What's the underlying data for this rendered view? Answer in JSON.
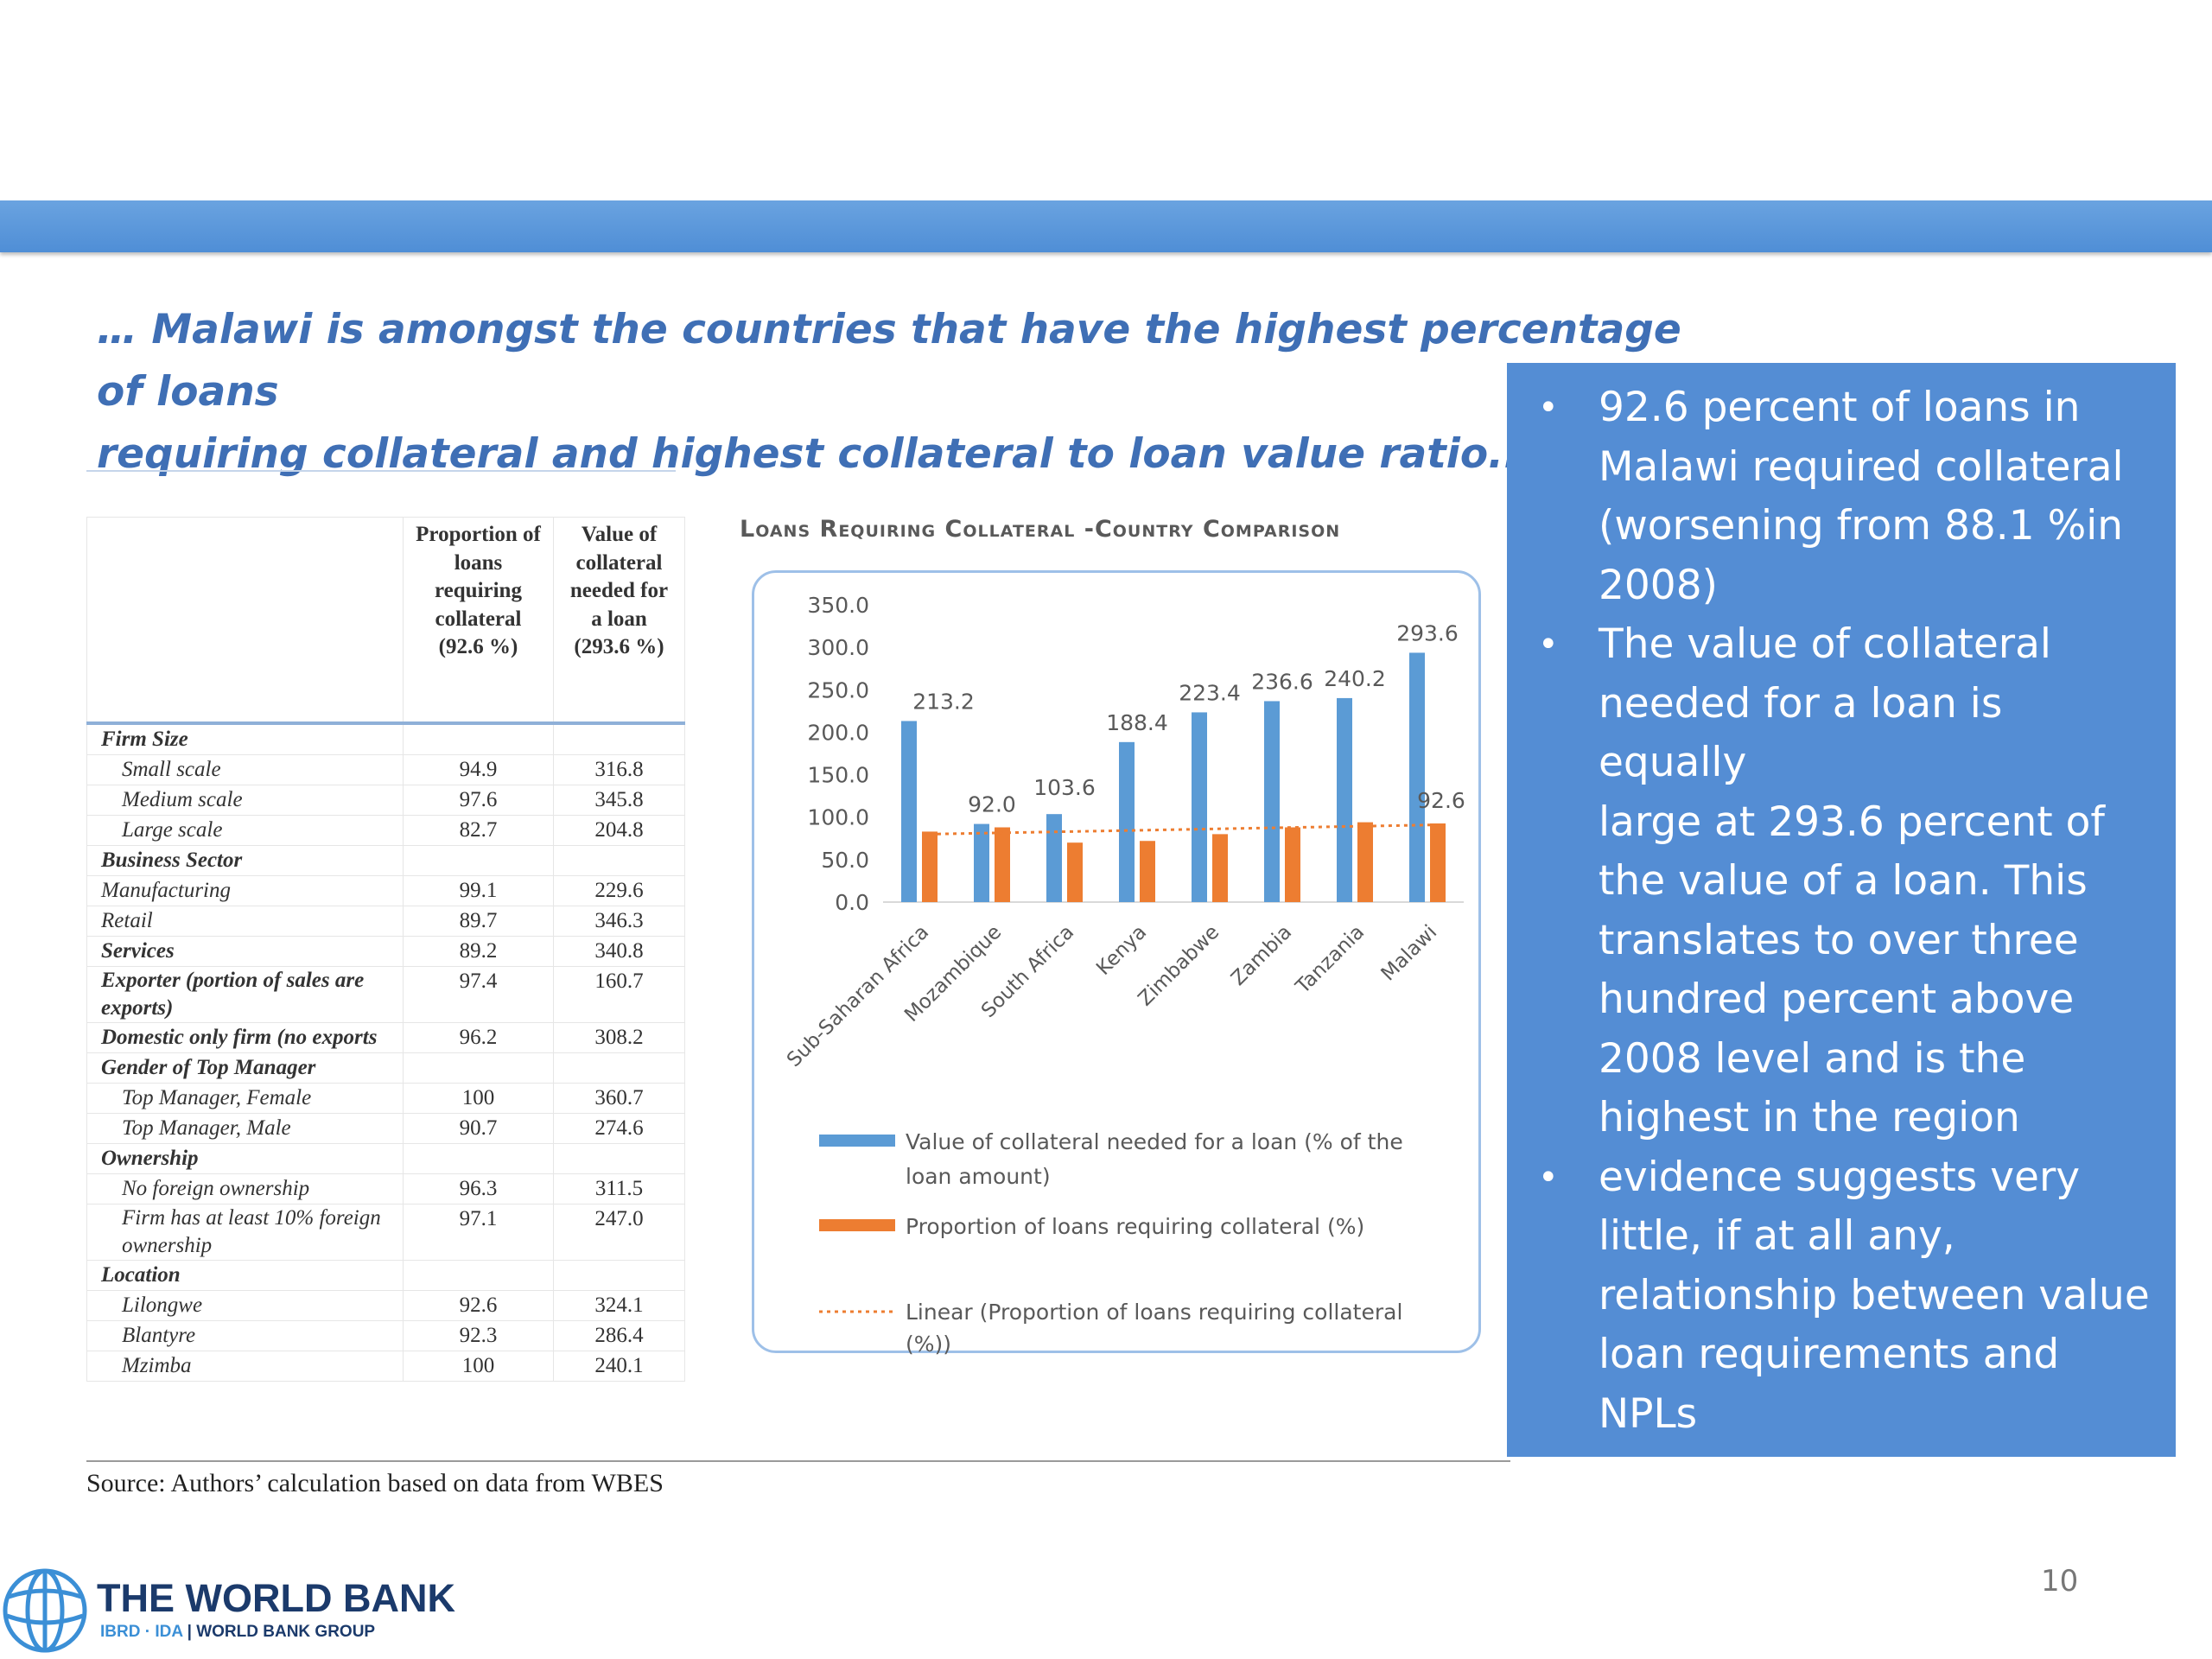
{
  "headline": {
    "line1": "… Malawi is amongst the countries that have the highest percentage of loans",
    "line2": "requiring collateral and highest collateral to loan value ratio.…"
  },
  "table": {
    "header": [
      "",
      "Proportion of loans requiring collateral (92.6 %)",
      "Value of collateral needed for a loan (293.6 %)"
    ],
    "rows": [
      {
        "kind": "cat",
        "label": "Firm Size",
        "v1": "",
        "v2": ""
      },
      {
        "kind": "sub",
        "label": "Small scale",
        "v1": "94.9",
        "v2": "316.8"
      },
      {
        "kind": "sub",
        "label": "Medium scale",
        "v1": "97.6",
        "v2": "345.8"
      },
      {
        "kind": "sub",
        "label": "Large scale",
        "v1": "82.7",
        "v2": "204.8"
      },
      {
        "kind": "cat",
        "label": "Business Sector",
        "v1": "",
        "v2": ""
      },
      {
        "kind": "item",
        "label": "Manufacturing",
        "v1": "99.1",
        "v2": "229.6"
      },
      {
        "kind": "item",
        "label": "Retail",
        "v1": "89.7",
        "v2": "346.3"
      },
      {
        "kind": "cat",
        "label": "Services",
        "v1": "89.2",
        "v2": "340.8"
      },
      {
        "kind": "cat",
        "label": "Exporter (portion of sales are exports)",
        "v1": "97.4",
        "v2": "160.7"
      },
      {
        "kind": "cat",
        "label": "Domestic only firm (no exports",
        "v1": "96.2",
        "v2": "308.2"
      },
      {
        "kind": "cat",
        "label": "Gender of Top Manager",
        "v1": "",
        "v2": ""
      },
      {
        "kind": "sub",
        "label": "Top Manager, Female",
        "v1": "100",
        "v2": "360.7"
      },
      {
        "kind": "sub",
        "label": "Top Manager, Male",
        "v1": "90.7",
        "v2": "274.6"
      },
      {
        "kind": "cat",
        "label": "Ownership",
        "v1": "",
        "v2": ""
      },
      {
        "kind": "sub",
        "label": "No foreign ownership",
        "v1": "96.3",
        "v2": "311.5"
      },
      {
        "kind": "sub",
        "label": "Firm has at least 10% foreign ownership",
        "v1": "97.1",
        "v2": "247.0"
      },
      {
        "kind": "cat",
        "label": "Location",
        "v1": "",
        "v2": ""
      },
      {
        "kind": "sub",
        "label": "Lilongwe",
        "v1": "92.6",
        "v2": "324.1"
      },
      {
        "kind": "sub",
        "label": "Blantyre",
        "v1": "92.3",
        "v2": "286.4"
      },
      {
        "kind": "sub",
        "label": "Mzimba",
        "v1": "100",
        "v2": "240.1"
      }
    ]
  },
  "chart_data": {
    "type": "bar",
    "title": "Loans Requiring Collateral -Country Comparison",
    "categories": [
      "Sub-Saharan Africa",
      "Mozambique",
      "South Africa",
      "Kenya",
      "Zimbabwe",
      "Zambia",
      "Tanzania",
      "Malawi"
    ],
    "series": [
      {
        "name": "Value of collateral needed for a loan (% of the loan amount)",
        "color": "#5b9bd5",
        "values": [
          213.2,
          92.0,
          103.6,
          188.4,
          223.4,
          236.6,
          240.2,
          293.6
        ]
      },
      {
        "name": "Proportion of loans requiring collateral (%)",
        "color": "#ed7d31",
        "values": [
          83.0,
          88.0,
          70.0,
          72.0,
          80.0,
          88.0,
          94.0,
          92.6
        ]
      }
    ],
    "data_labels": [
      "213.2",
      "92.0",
      "103.6",
      "188.4",
      "223.4",
      "236.6",
      "240.2",
      "293.6"
    ],
    "extra_label": "92.6",
    "trendline": {
      "name": "Linear (Proportion of loans requiring collateral (%))",
      "color": "#ed7d31",
      "start": 80.0,
      "end": 91.0
    },
    "yticks": [
      "350.0",
      "300.0",
      "250.0",
      "200.0",
      "150.0",
      "100.0",
      "50.0",
      "0.0"
    ],
    "ylim": [
      0,
      350
    ],
    "legend": {
      "bar1_line1": "Value of collateral needed for a loan (% of the",
      "bar1_line2": "loan amount)",
      "bar2": "Proportion of loans requiring collateral (%)",
      "trend_line1": "Linear (Proportion of loans requiring collateral",
      "trend_line2": "(%))"
    }
  },
  "panel": {
    "bullet_char": "•",
    "bullets": [
      [
        "92.6 percent of loans in",
        "Malawi required collateral",
        "(worsening from 88.1 %in",
        "2008)"
      ],
      [
        "The value of collateral",
        "needed for a loan is equally",
        "large at 293.6 percent of",
        "the value of a loan. This",
        "translates to over three",
        "hundred percent above",
        "2008 level and is the",
        "highest in the region"
      ],
      [
        "evidence suggests very",
        "little, if at all any,",
        "relationship between value",
        "loan requirements and",
        "NPLs"
      ]
    ]
  },
  "source": "Source:  Authors’ calculation based on data from WBES",
  "page_number": "10",
  "logo": {
    "title": "THE WORLD BANK",
    "sub_a": "IBRD · IDA",
    "sub_sep": " | ",
    "sub_b": "WORLD BANK GROUP"
  }
}
